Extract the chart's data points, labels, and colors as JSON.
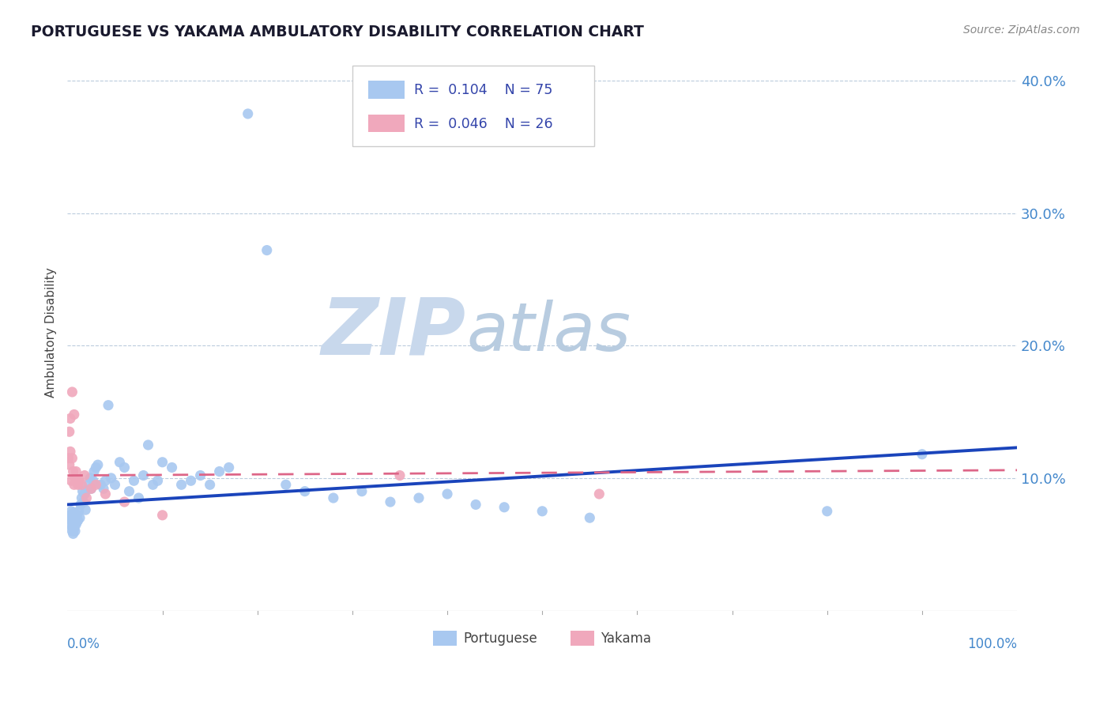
{
  "title": "PORTUGUESE VS YAKAMA AMBULATORY DISABILITY CORRELATION CHART",
  "source": "Source: ZipAtlas.com",
  "ylabel": "Ambulatory Disability",
  "yticks": [
    0.0,
    0.1,
    0.2,
    0.3,
    0.4
  ],
  "ytick_labels": [
    "",
    "10.0%",
    "20.0%",
    "30.0%",
    "40.0%"
  ],
  "xlim": [
    0.0,
    1.0
  ],
  "ylim": [
    0.0,
    0.42
  ],
  "portuguese_R": 0.104,
  "portuguese_N": 75,
  "yakama_R": 0.046,
  "yakama_N": 26,
  "portuguese_color": "#a8c8f0",
  "yakama_color": "#f0a8bc",
  "portuguese_line_color": "#1a44bb",
  "yakama_line_color": "#dd6688",
  "watermark_zip": "ZIP",
  "watermark_atlas": "atlas",
  "watermark_color_zip": "#c8d8ec",
  "watermark_color_atlas": "#b8cce0",
  "portuguese_x": [
    0.002,
    0.003,
    0.003,
    0.004,
    0.004,
    0.005,
    0.005,
    0.005,
    0.006,
    0.006,
    0.006,
    0.007,
    0.007,
    0.007,
    0.008,
    0.008,
    0.009,
    0.009,
    0.01,
    0.01,
    0.011,
    0.012,
    0.013,
    0.014,
    0.015,
    0.016,
    0.017,
    0.018,
    0.019,
    0.02,
    0.022,
    0.024,
    0.025,
    0.027,
    0.028,
    0.03,
    0.032,
    0.035,
    0.038,
    0.04,
    0.043,
    0.046,
    0.05,
    0.055,
    0.06,
    0.065,
    0.07,
    0.075,
    0.08,
    0.085,
    0.09,
    0.095,
    0.1,
    0.11,
    0.12,
    0.13,
    0.14,
    0.15,
    0.16,
    0.17,
    0.19,
    0.21,
    0.23,
    0.25,
    0.28,
    0.31,
    0.34,
    0.37,
    0.4,
    0.43,
    0.46,
    0.5,
    0.55,
    0.8,
    0.9
  ],
  "portuguese_y": [
    0.065,
    0.07,
    0.072,
    0.068,
    0.075,
    0.06,
    0.063,
    0.073,
    0.058,
    0.065,
    0.071,
    0.062,
    0.068,
    0.074,
    0.06,
    0.07,
    0.065,
    0.073,
    0.067,
    0.072,
    0.068,
    0.075,
    0.07,
    0.08,
    0.085,
    0.09,
    0.082,
    0.088,
    0.076,
    0.091,
    0.095,
    0.1,
    0.092,
    0.098,
    0.105,
    0.108,
    0.11,
    0.095,
    0.092,
    0.098,
    0.155,
    0.1,
    0.095,
    0.112,
    0.108,
    0.09,
    0.098,
    0.085,
    0.102,
    0.125,
    0.095,
    0.098,
    0.112,
    0.108,
    0.095,
    0.098,
    0.102,
    0.095,
    0.105,
    0.108,
    0.375,
    0.272,
    0.095,
    0.09,
    0.085,
    0.09,
    0.082,
    0.085,
    0.088,
    0.08,
    0.078,
    0.075,
    0.07,
    0.075,
    0.118
  ],
  "yakama_x": [
    0.001,
    0.002,
    0.002,
    0.003,
    0.003,
    0.004,
    0.005,
    0.005,
    0.006,
    0.007,
    0.007,
    0.008,
    0.009,
    0.01,
    0.011,
    0.012,
    0.015,
    0.018,
    0.02,
    0.025,
    0.03,
    0.04,
    0.06,
    0.1,
    0.35,
    0.56
  ],
  "yakama_y": [
    0.115,
    0.11,
    0.135,
    0.12,
    0.145,
    0.098,
    0.115,
    0.165,
    0.105,
    0.148,
    0.095,
    0.1,
    0.105,
    0.098,
    0.095,
    0.098,
    0.095,
    0.102,
    0.085,
    0.092,
    0.095,
    0.088,
    0.082,
    0.072,
    0.102,
    0.088
  ],
  "portuguese_line_x0": 0.0,
  "portuguese_line_x1": 1.0,
  "portuguese_line_y0": 0.08,
  "portuguese_line_y1": 0.123,
  "yakama_line_x0": 0.0,
  "yakama_line_x1": 1.0,
  "yakama_line_y0": 0.102,
  "yakama_line_y1": 0.106
}
